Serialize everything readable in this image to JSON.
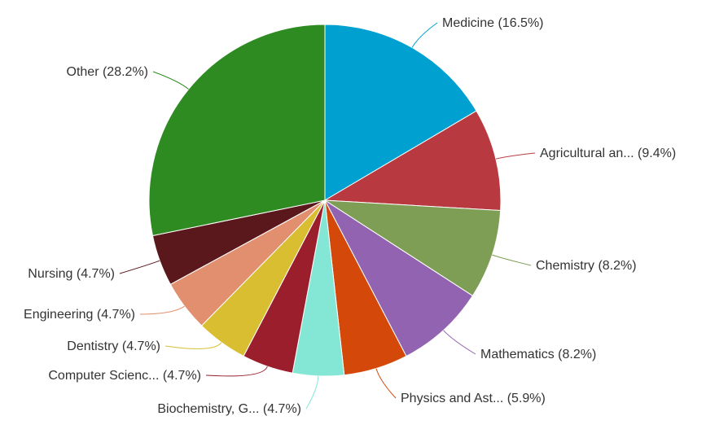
{
  "chart_data": {
    "type": "pie",
    "title": "",
    "slices": [
      {
        "label": "Medicine (16.5%)",
        "value": 16.5,
        "color": "#00a0d0"
      },
      {
        "label": "Agricultural an... (9.4%)",
        "value": 9.4,
        "color": "#b83a40"
      },
      {
        "label": "Chemistry (8.2%)",
        "value": 8.2,
        "color": "#7e9e56"
      },
      {
        "label": "Mathematics (8.2%)",
        "value": 8.2,
        "color": "#9263b0"
      },
      {
        "label": "Physics and Ast... (5.9%)",
        "value": 5.9,
        "color": "#d4490a"
      },
      {
        "label": "Biochemistry, G... (4.7%)",
        "value": 4.7,
        "color": "#84e6d4"
      },
      {
        "label": "Computer Scienc... (4.7%)",
        "value": 4.7,
        "color": "#9b1e2c"
      },
      {
        "label": "Dentistry (4.7%)",
        "value": 4.7,
        "color": "#d8be30"
      },
      {
        "label": "Engineering (4.7%)",
        "value": 4.7,
        "color": "#e28f70"
      },
      {
        "label": "Nursing (4.7%)",
        "value": 4.7,
        "color": "#5a181c"
      },
      {
        "label": "Other (28.2%)",
        "value": 28.2,
        "color": "#2e8b22"
      }
    ]
  }
}
